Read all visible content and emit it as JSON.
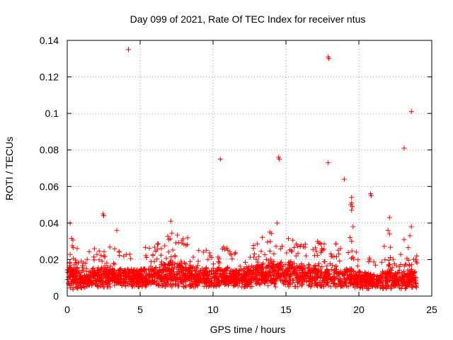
{
  "chart_data": {
    "type": "scatter",
    "title": "Day 099 of 2021, Rate Of TEC Index for receiver ntus",
    "xlabel": "GPS time / hours",
    "ylabel": "ROTI / TECUs",
    "xlim": [
      0,
      25
    ],
    "ylim": [
      0,
      0.14
    ],
    "xticks": [
      0,
      5,
      10,
      15,
      20,
      25
    ],
    "yticks": [
      0,
      0.02,
      0.04,
      0.06,
      0.08,
      0.1,
      0.12,
      0.14
    ],
    "xtick_labels": [
      "0",
      "5",
      "10",
      "15",
      "20",
      "25"
    ],
    "ytick_labels": [
      "0",
      "0.02",
      "0.04",
      "0.06",
      "0.08",
      "0.1",
      "0.12",
      "0.14"
    ],
    "grid": true,
    "marker": "+",
    "colors": {
      "marker": "#ff0000",
      "grid": "#a0a0a0",
      "frame": "#000000"
    },
    "outliers": [
      {
        "x": 4.2,
        "y": 0.135
      },
      {
        "x": 17.9,
        "y": 0.131
      },
      {
        "x": 17.95,
        "y": 0.13
      },
      {
        "x": 23.6,
        "y": 0.101
      },
      {
        "x": 23.1,
        "y": 0.081
      },
      {
        "x": 14.5,
        "y": 0.076
      },
      {
        "x": 14.55,
        "y": 0.075
      },
      {
        "x": 10.5,
        "y": 0.075
      },
      {
        "x": 17.9,
        "y": 0.073
      },
      {
        "x": 19.0,
        "y": 0.064
      },
      {
        "x": 20.8,
        "y": 0.056
      },
      {
        "x": 20.85,
        "y": 0.055
      },
      {
        "x": 19.5,
        "y": 0.054
      },
      {
        "x": 19.5,
        "y": 0.051
      },
      {
        "x": 19.45,
        "y": 0.05
      },
      {
        "x": 19.55,
        "y": 0.049
      },
      {
        "x": 19.5,
        "y": 0.047
      },
      {
        "x": 2.45,
        "y": 0.045
      },
      {
        "x": 2.5,
        "y": 0.044
      },
      {
        "x": 22.1,
        "y": 0.043
      },
      {
        "x": 7.1,
        "y": 0.041
      },
      {
        "x": 14.4,
        "y": 0.04
      },
      {
        "x": 0.2,
        "y": 0.04
      },
      {
        "x": 19.6,
        "y": 0.038
      },
      {
        "x": 23.6,
        "y": 0.038
      },
      {
        "x": 3.4,
        "y": 0.036
      },
      {
        "x": 22.0,
        "y": 0.036
      },
      {
        "x": 13.9,
        "y": 0.035
      },
      {
        "x": 19.4,
        "y": 0.032
      },
      {
        "x": 23.5,
        "y": 0.033
      },
      {
        "x": 23.1,
        "y": 0.031
      },
      {
        "x": 19.5,
        "y": 0.03
      },
      {
        "x": 22.1,
        "y": 0.034
      }
    ],
    "bulk_profile": {
      "x": [
        0,
        0.25,
        0.5,
        0.75,
        1,
        1.5,
        2,
        2.5,
        3,
        3.5,
        4,
        4.5,
        5,
        5.5,
        6,
        6.5,
        7,
        7.5,
        8,
        8.5,
        9,
        9.5,
        10,
        10.5,
        11,
        11.5,
        12,
        12.5,
        13,
        13.5,
        14,
        14.5,
        15,
        15.5,
        16,
        16.5,
        17,
        17.5,
        18,
        18.5,
        19,
        19.5,
        20,
        20.5,
        21,
        21.5,
        22,
        22.5,
        23,
        23.5,
        24
      ],
      "low": [
        0.003,
        0.003,
        0.004,
        0.004,
        0.004,
        0.004,
        0.005,
        0.005,
        0.005,
        0.005,
        0.005,
        0.005,
        0.005,
        0.005,
        0.005,
        0.005,
        0.005,
        0.005,
        0.005,
        0.005,
        0.005,
        0.005,
        0.005,
        0.005,
        0.005,
        0.005,
        0.005,
        0.005,
        0.005,
        0.005,
        0.005,
        0.005,
        0.005,
        0.005,
        0.005,
        0.005,
        0.005,
        0.005,
        0.005,
        0.005,
        0.005,
        0.005,
        0.004,
        0.004,
        0.004,
        0.004,
        0.004,
        0.004,
        0.004,
        0.004,
        0.004
      ],
      "high": [
        0.034,
        0.036,
        0.03,
        0.026,
        0.022,
        0.025,
        0.028,
        0.029,
        0.027,
        0.027,
        0.026,
        0.026,
        0.027,
        0.027,
        0.029,
        0.031,
        0.035,
        0.038,
        0.034,
        0.03,
        0.027,
        0.026,
        0.025,
        0.027,
        0.027,
        0.024,
        0.025,
        0.03,
        0.033,
        0.034,
        0.036,
        0.035,
        0.034,
        0.033,
        0.031,
        0.03,
        0.03,
        0.03,
        0.031,
        0.029,
        0.025,
        0.026,
        0.024,
        0.022,
        0.021,
        0.024,
        0.031,
        0.023,
        0.024,
        0.028,
        0.022
      ]
    },
    "bulk_count": 2600,
    "x_extent": [
      0,
      24
    ]
  }
}
